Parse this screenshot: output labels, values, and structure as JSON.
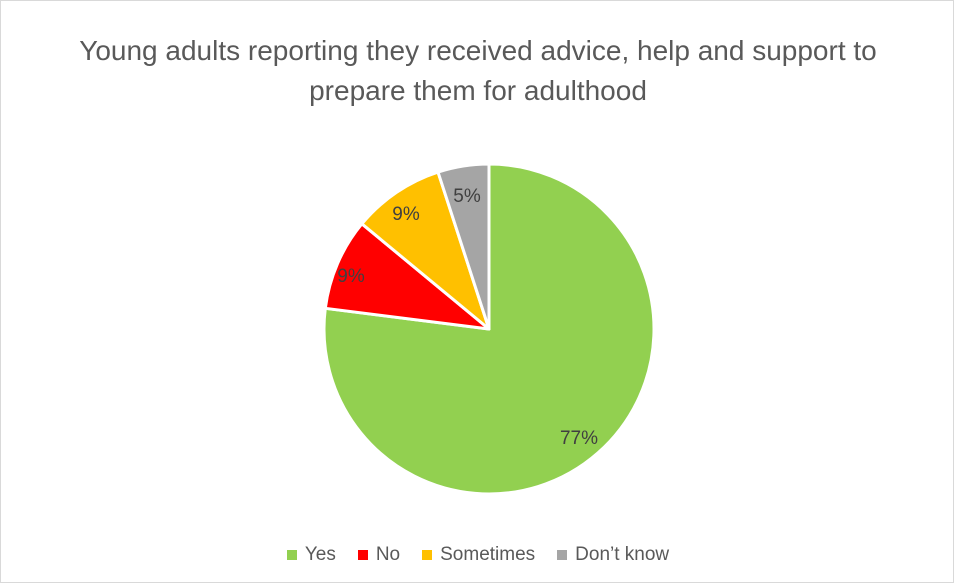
{
  "chart_data": {
    "type": "pie",
    "title": "Young adults reporting they received advice, help and support to prepare them for adulthood",
    "title_lines": [
      "Young adults reporting they received advice, help and support to",
      "prepare them for adulthood"
    ],
    "categories": [
      "Yes",
      "No",
      "Sometimes",
      "Don’t know"
    ],
    "values": [
      77,
      9,
      9,
      5
    ],
    "data_labels": [
      "77%",
      "9%",
      "9%",
      "5%"
    ],
    "colors": [
      "#92d050",
      "#ff0000",
      "#ffc000",
      "#a5a5a5"
    ],
    "legend_position": "bottom",
    "start_angle": "12 o'clock, clockwise"
  }
}
